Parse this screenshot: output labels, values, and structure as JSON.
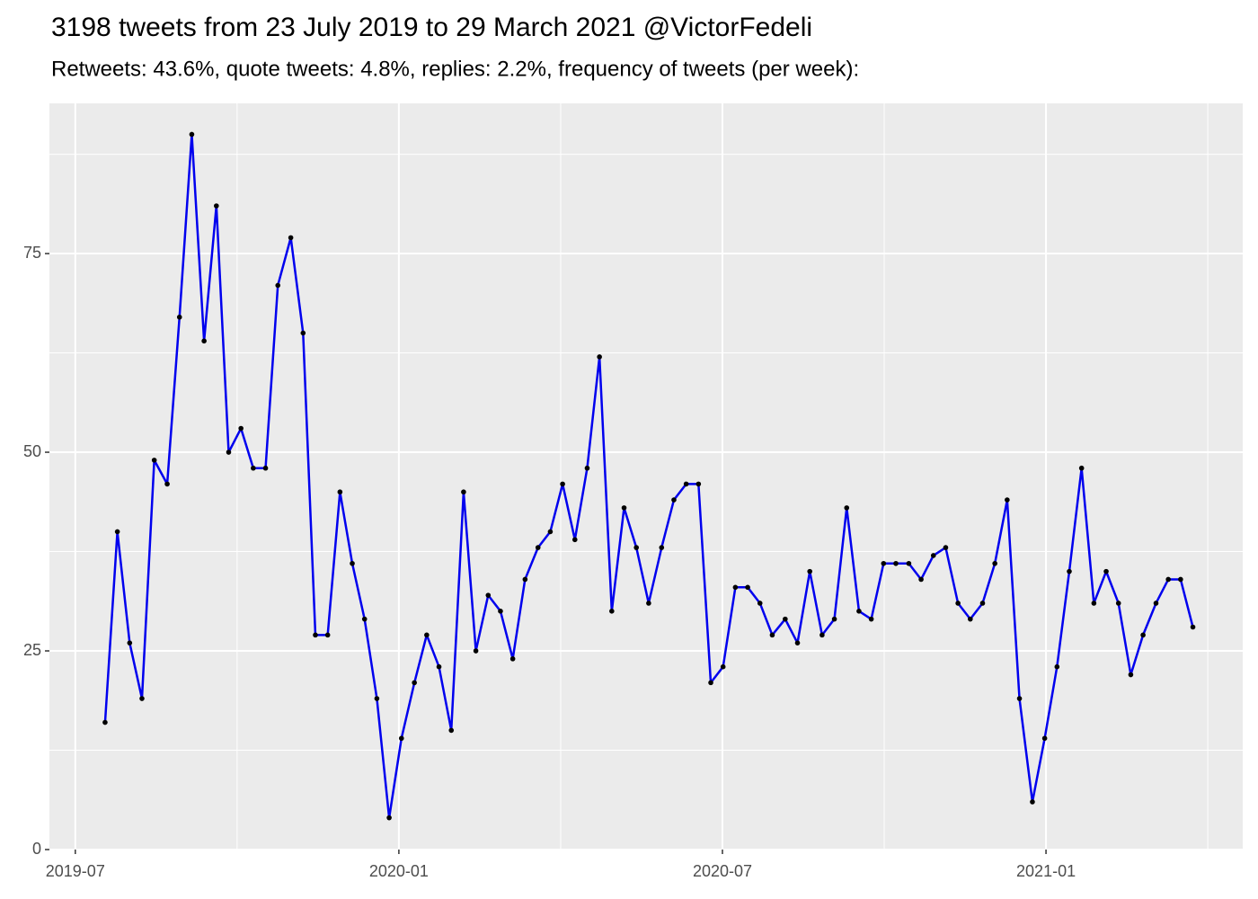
{
  "chart_data": {
    "type": "line",
    "title": "3198 tweets from 23 July 2019 to 29 March 2021 @VictorFedeli",
    "subtitle": "Retweets: 43.6%, quote tweets: 4.8%, replies: 2.2%, frequency of tweets (per week):",
    "x": [
      2019.546,
      2019.565,
      2019.584,
      2019.603,
      2019.622,
      2019.642,
      2019.661,
      2019.68,
      2019.699,
      2019.718,
      2019.737,
      2019.756,
      2019.775,
      2019.794,
      2019.813,
      2019.833,
      2019.852,
      2019.871,
      2019.89,
      2019.909,
      2019.928,
      2019.947,
      2019.966,
      2019.985,
      2020.004,
      2020.024,
      2020.043,
      2020.062,
      2020.081,
      2020.1,
      2020.119,
      2020.138,
      2020.157,
      2020.176,
      2020.195,
      2020.215,
      2020.234,
      2020.253,
      2020.272,
      2020.291,
      2020.31,
      2020.329,
      2020.348,
      2020.367,
      2020.386,
      2020.406,
      2020.425,
      2020.444,
      2020.463,
      2020.482,
      2020.501,
      2020.52,
      2020.539,
      2020.558,
      2020.577,
      2020.597,
      2020.616,
      2020.635,
      2020.654,
      2020.673,
      2020.692,
      2020.711,
      2020.73,
      2020.749,
      2020.768,
      2020.788,
      2020.807,
      2020.826,
      2020.845,
      2020.864,
      2020.883,
      2020.902,
      2020.921,
      2020.94,
      2020.959,
      2020.979,
      2020.998,
      2021.017,
      2021.036,
      2021.055,
      2021.074,
      2021.093,
      2021.112,
      2021.131,
      2021.15,
      2021.17,
      2021.189,
      2021.208,
      2021.227
    ],
    "values": [
      16,
      40,
      26,
      19,
      49,
      46,
      67,
      90,
      64,
      81,
      50,
      53,
      48,
      48,
      71,
      77,
      65,
      27,
      27,
      45,
      36,
      29,
      19,
      4,
      14,
      21,
      27,
      23,
      15,
      45,
      25,
      32,
      30,
      24,
      34,
      38,
      40,
      46,
      39,
      48,
      62,
      30,
      43,
      38,
      31,
      38,
      44,
      46,
      46,
      21,
      23,
      33,
      33,
      31,
      27,
      29,
      26,
      35,
      27,
      29,
      43,
      30,
      29,
      36,
      36,
      36,
      34,
      37,
      38,
      31,
      29,
      31,
      36,
      44,
      19,
      6,
      14,
      23,
      35,
      48,
      31,
      35,
      31,
      22,
      27,
      31,
      34,
      34,
      28
    ],
    "color": "#0000ee",
    "point_color": "#000000",
    "xlim": [
      2019.46,
      2021.304
    ],
    "ylim": [
      0,
      93.9
    ],
    "xticks": [
      {
        "value": 2019.5,
        "label": "2019-07"
      },
      {
        "value": 2020.0,
        "label": "2020-01"
      },
      {
        "value": 2020.5,
        "label": "2020-07"
      },
      {
        "value": 2021.0,
        "label": "2021-01"
      }
    ],
    "yticks": [
      0,
      25,
      50,
      75
    ],
    "x_minor_breaks": [
      2019.75,
      2020.25,
      2020.75,
      2021.25
    ],
    "y_minor_breaks": [
      12.5,
      37.5,
      62.5,
      87.5
    ],
    "grid": true,
    "panel_color": "#ebebeb"
  }
}
